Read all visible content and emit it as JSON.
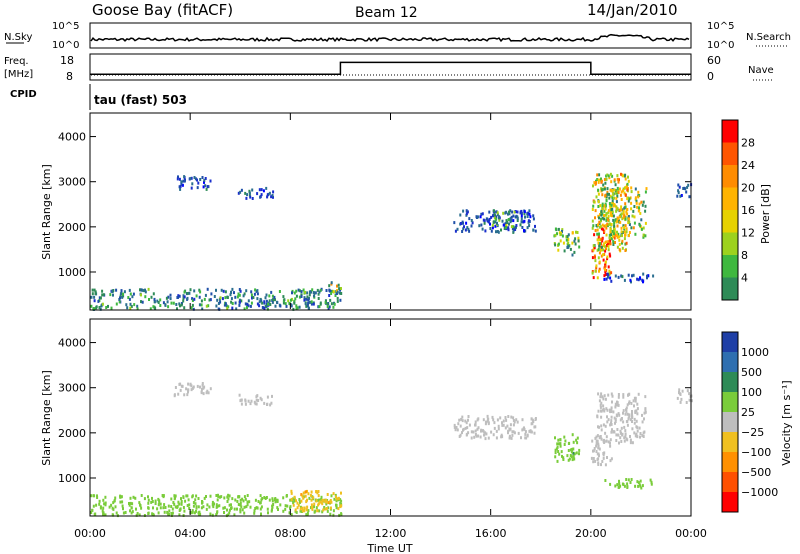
{
  "header": {
    "station": "Goose Bay (fitACF)",
    "beam": "Beam 12",
    "date": "14/Jan/2010"
  },
  "strips": {
    "nsky_label": "N.Sky",
    "nsky_ticks": [
      "10^5",
      "10^0"
    ],
    "nsearch_label": "N.Search",
    "nsearch_ticks": [
      "10^5",
      "10^0"
    ],
    "freq_label": "Freq.",
    "freq_unit": "[MHz]",
    "freq_ticks": [
      "18",
      "8"
    ],
    "nave_label": "Nave",
    "nave_ticks": [
      "60",
      "0"
    ],
    "cpid_label": "CPID",
    "cpid_value": "tau (fast) 503",
    "freq_steps": [
      {
        "t": 0,
        "v": 10.2
      },
      {
        "t": 10,
        "v": 14.8
      },
      {
        "t": 20,
        "v": 10.2
      },
      {
        "t": 24,
        "v": 10.2
      }
    ]
  },
  "panels": {
    "power_ylabel": "Slant Range [km]",
    "velocity_ylabel": "Slant Range [km]",
    "y_ticks": [
      "1000",
      "2000",
      "3000",
      "4000"
    ],
    "x_ticks": [
      "00:00",
      "04:00",
      "08:00",
      "12:00",
      "16:00",
      "20:00",
      "00:00"
    ],
    "xlabel": "Time UT"
  },
  "power_scale": {
    "title": "Power [dB]",
    "labels": [
      "28",
      "24",
      "20",
      "16",
      "12",
      "8",
      "4"
    ],
    "colors": [
      "#ff0000",
      "#ff5500",
      "#ff8c00",
      "#ffb300",
      "#e6d200",
      "#9dd21e",
      "#3fb83f",
      "#2e8b57",
      "#2a6e8f",
      "#1f4fa8",
      "#1a2fcc",
      "#0000ff"
    ]
  },
  "velocity_scale": {
    "title": "Velocity [m s⁻¹]",
    "labels": [
      "1000",
      "500",
      "100",
      "25",
      "−25",
      "−100",
      "−500",
      "−1000"
    ],
    "colors": [
      "#1f3fa6",
      "#2f6fb0",
      "#2e8b57",
      "#7acc3a",
      "#bebebe",
      "#f0c020",
      "#ff9000",
      "#ff5000",
      "#ff0000"
    ]
  },
  "chart_data": [
    {
      "type": "heatmap",
      "title": "Power",
      "xlabel": "Time UT",
      "ylabel": "Slant Range [km]",
      "xlim": [
        0,
        24
      ],
      "ylim": [
        180,
        4500
      ],
      "colorbar": {
        "label": "Power [dB]",
        "ticks": [
          4,
          8,
          12,
          16,
          20,
          24,
          28
        ]
      },
      "regions": [
        {
          "t": [
            0,
            10
          ],
          "r": [
            200,
            650
          ],
          "v": 10
        },
        {
          "t": [
            9.5,
            10
          ],
          "r": [
            500,
            800
          ],
          "v": 16
        },
        {
          "t": [
            3.3,
            4.8
          ],
          "r": [
            2850,
            3150
          ],
          "v": 6
        },
        {
          "t": [
            5.9,
            7.3
          ],
          "r": [
            2650,
            2900
          ],
          "v": 6
        },
        {
          "t": [
            14.5,
            17.8
          ],
          "r": [
            1900,
            2400
          ],
          "v": 6
        },
        {
          "t": [
            16,
            17
          ],
          "r": [
            2000,
            2400
          ],
          "v": 12
        },
        {
          "t": [
            18.5,
            19.5
          ],
          "r": [
            1400,
            2000
          ],
          "v": 14
        },
        {
          "t": [
            20,
            20.8
          ],
          "r": [
            900,
            2000
          ],
          "v": 24
        },
        {
          "t": [
            20.2,
            22.2
          ],
          "r": [
            1800,
            2900
          ],
          "v": 16
        },
        {
          "t": [
            20.5,
            22.5
          ],
          "r": [
            800,
            1000
          ],
          "v": 6
        },
        {
          "t": [
            20,
            21.5
          ],
          "r": [
            1500,
            3200
          ],
          "v": 18
        },
        {
          "t": [
            23.4,
            24
          ],
          "r": [
            2700,
            3000
          ],
          "v": 6
        }
      ]
    },
    {
      "type": "heatmap",
      "title": "Velocity",
      "xlabel": "Time UT",
      "ylabel": "Slant Range [km]",
      "xlim": [
        0,
        24
      ],
      "ylim": [
        180,
        4500
      ],
      "colorbar": {
        "label": "Velocity [m s⁻¹]",
        "ticks": [
          1000,
          500,
          100,
          25,
          -25,
          -100,
          -500,
          -1000
        ]
      },
      "regions": [
        {
          "t": [
            0,
            10
          ],
          "r": [
            200,
            650
          ],
          "v": 60
        },
        {
          "t": [
            8,
            10
          ],
          "r": [
            300,
            750
          ],
          "v": -80
        },
        {
          "t": [
            3.3,
            4.8
          ],
          "r": [
            2850,
            3150
          ],
          "v": 0
        },
        {
          "t": [
            5.9,
            7.3
          ],
          "r": [
            2650,
            2900
          ],
          "v": 0
        },
        {
          "t": [
            14.5,
            17.8
          ],
          "r": [
            1900,
            2400
          ],
          "v": 0
        },
        {
          "t": [
            18.5,
            19.5
          ],
          "r": [
            1400,
            2000
          ],
          "v": 80
        },
        {
          "t": [
            20,
            20.8
          ],
          "r": [
            1300,
            2000
          ],
          "v": 0
        },
        {
          "t": [
            20.2,
            22.2
          ],
          "r": [
            1800,
            2900
          ],
          "v": 0
        },
        {
          "t": [
            20.5,
            22.5
          ],
          "r": [
            800,
            1000
          ],
          "v": 80
        },
        {
          "t": [
            23.4,
            24
          ],
          "r": [
            2700,
            3000
          ],
          "v": 0
        }
      ]
    }
  ]
}
